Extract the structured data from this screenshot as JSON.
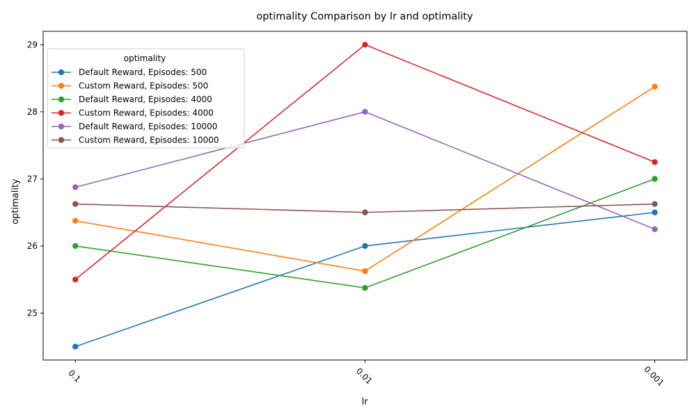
{
  "chart_data": {
    "type": "line",
    "title": "optimality Comparison by lr and optimality",
    "xlabel": "lr",
    "ylabel": "optimality",
    "categories": [
      "0.1",
      "0.01",
      "0.001"
    ],
    "ylim": [
      24.3,
      29.2
    ],
    "yticks": [
      25,
      26,
      27,
      28,
      29
    ],
    "grid": false,
    "legend": {
      "title": "optimality",
      "position": "top-left"
    },
    "series": [
      {
        "name": "Default Reward, Episodes: 500",
        "color": "#1f77b4",
        "values": [
          24.5,
          26.0,
          26.5
        ]
      },
      {
        "name": "Custom Reward, Episodes: 500",
        "color": "#ff7f0e",
        "values": [
          26.375,
          25.625,
          28.375
        ]
      },
      {
        "name": "Default Reward, Episodes: 4000",
        "color": "#2ca02c",
        "values": [
          26.0,
          25.375,
          27.0
        ]
      },
      {
        "name": "Custom Reward, Episodes: 4000",
        "color": "#d62728",
        "values": [
          25.5,
          29.0,
          27.25
        ]
      },
      {
        "name": "Default Reward, Episodes: 10000",
        "color": "#9467bd",
        "values": [
          26.875,
          28.0,
          26.25
        ]
      },
      {
        "name": "Custom Reward, Episodes: 10000",
        "color": "#8c564b",
        "values": [
          26.625,
          26.5,
          26.625
        ]
      }
    ]
  }
}
